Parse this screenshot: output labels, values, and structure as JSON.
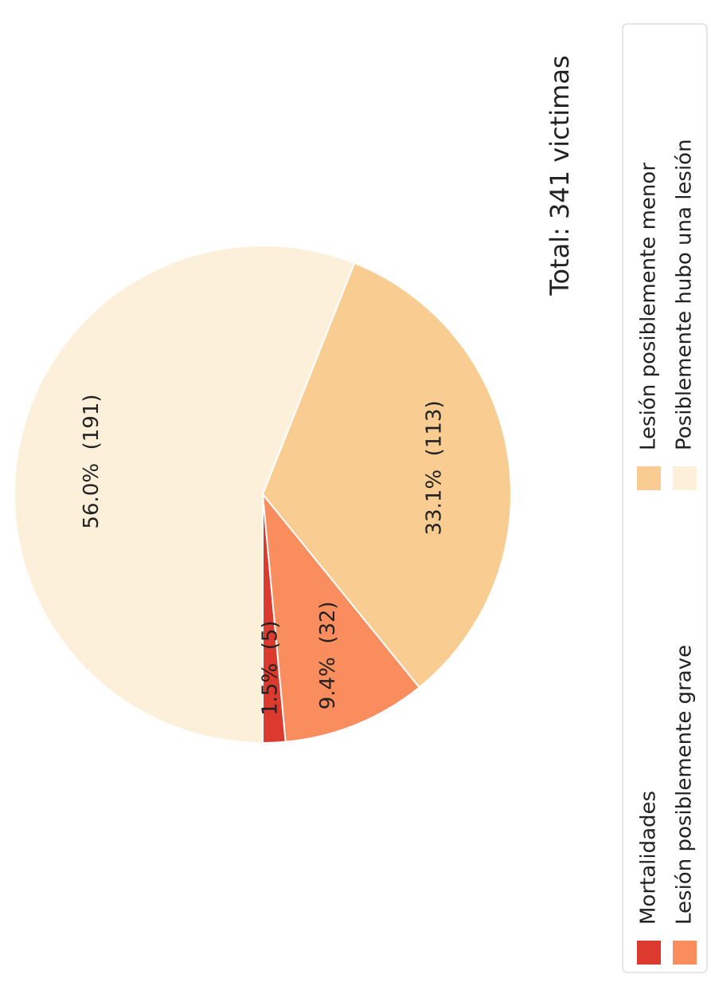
{
  "chart_data": {
    "type": "pie",
    "title": "Total: 341 victimas",
    "categories": [
      "Mortalidades",
      "Lesión posiblemente grave",
      "Lesión posiblemente menor",
      "Posiblemente hubo una lesión"
    ],
    "values": [
      5,
      32,
      113,
      191
    ],
    "value_labels": [
      "1.5%  (5)",
      "9.4%  (32)",
      "33.1%  (113)",
      "56.0%  (191)"
    ],
    "colors": [
      "#dc3a2e",
      "#f98d5e",
      "#f9cc91",
      "#fdf0da"
    ],
    "legend": true
  }
}
